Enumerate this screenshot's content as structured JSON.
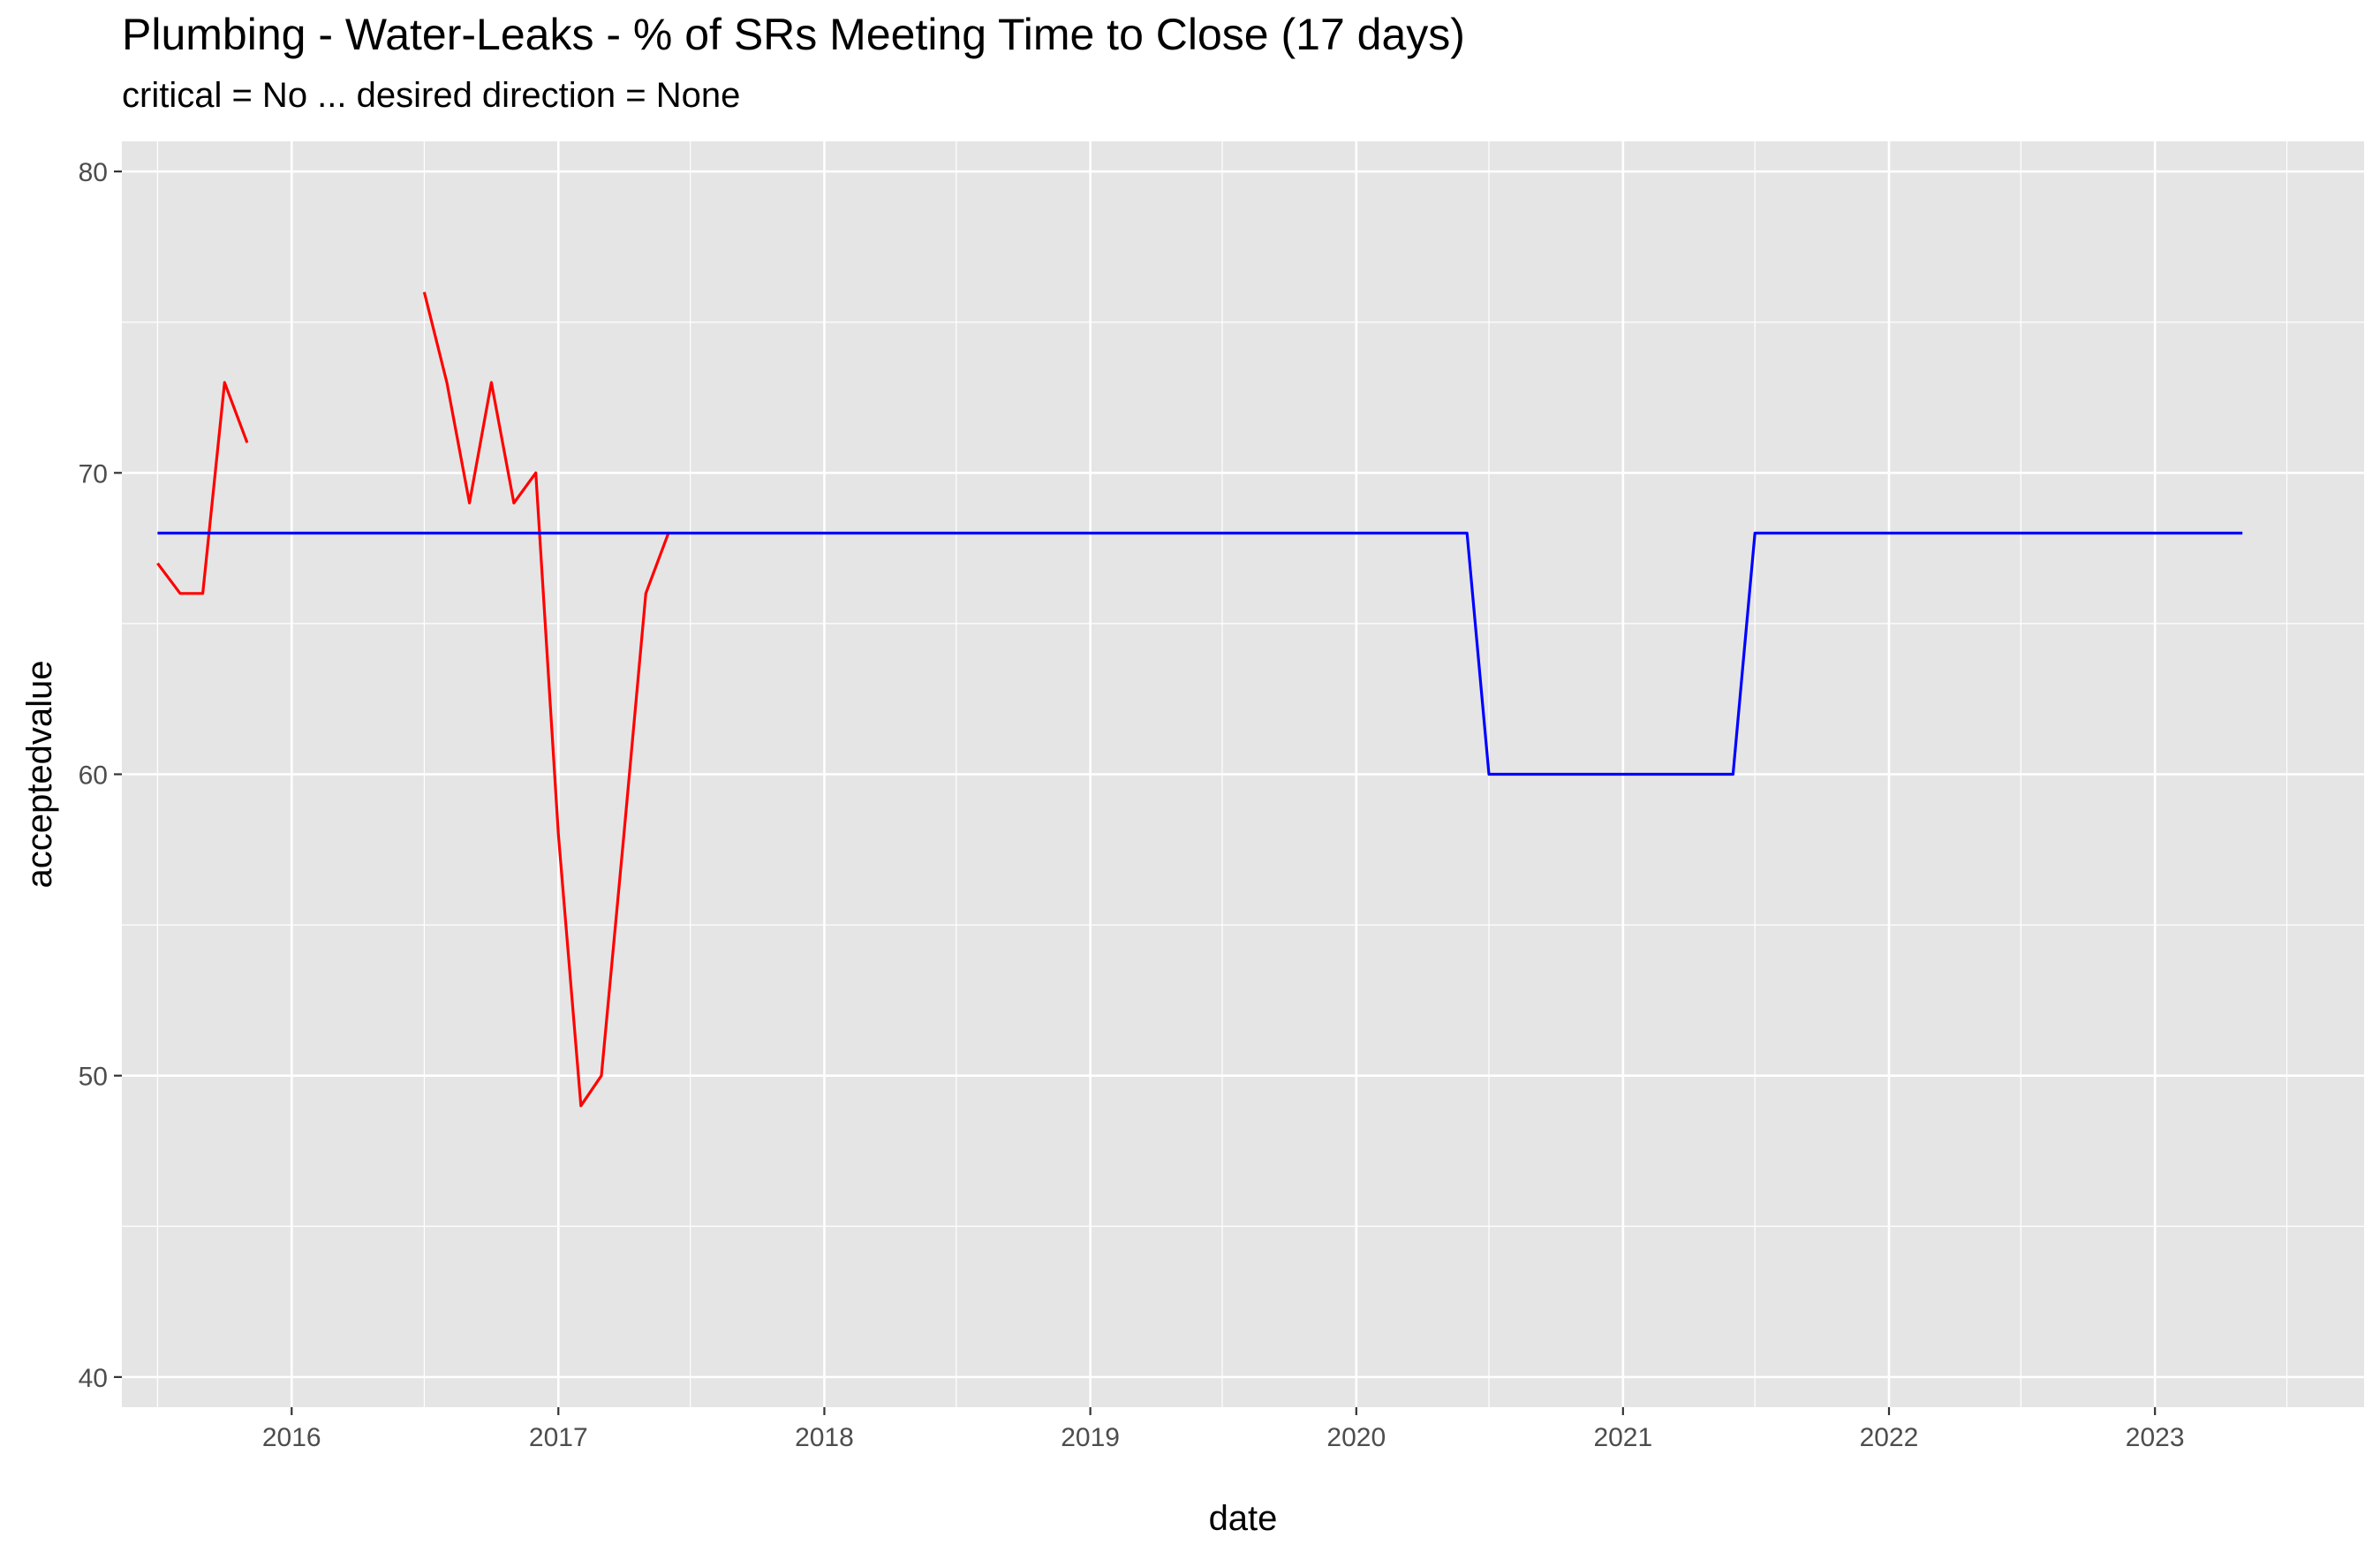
{
  "chart_data": {
    "type": "line",
    "title": "Plumbing - Water-Leaks - % of SRs Meeting Time to Close (17 days)",
    "subtitle": "critical = No ... desired direction = None",
    "xlabel": "date",
    "ylabel": "acceptedvalue",
    "xlim": [
      "2015-05-13",
      "2023-10-15"
    ],
    "ylim": [
      39,
      81
    ],
    "x_ticks": [
      {
        "date": "2016-01-01",
        "label": "2016"
      },
      {
        "date": "2017-01-01",
        "label": "2017"
      },
      {
        "date": "2018-01-01",
        "label": "2018"
      },
      {
        "date": "2019-01-01",
        "label": "2019"
      },
      {
        "date": "2020-01-01",
        "label": "2020"
      },
      {
        "date": "2021-01-01",
        "label": "2021"
      },
      {
        "date": "2022-01-01",
        "label": "2022"
      },
      {
        "date": "2023-01-01",
        "label": "2023"
      }
    ],
    "x_minor_ticks": [
      "2015-07-01",
      "2016-07-01",
      "2017-07-01",
      "2018-07-01",
      "2019-07-01",
      "2020-07-01",
      "2021-07-01",
      "2022-07-01",
      "2023-07-01"
    ],
    "y_ticks": [
      40,
      50,
      60,
      70,
      80
    ],
    "y_minor_ticks": [
      45,
      55,
      65,
      75
    ],
    "grid": true,
    "legend": "none",
    "series": [
      {
        "color": "#ff0000",
        "segments": [
          [
            {
              "x": "2015-07-01",
              "y": 67
            },
            {
              "x": "2015-08-01",
              "y": 66
            },
            {
              "x": "2015-09-01",
              "y": 66
            },
            {
              "x": "2015-10-01",
              "y": 73
            },
            {
              "x": "2015-11-01",
              "y": 71
            }
          ],
          [
            {
              "x": "2016-07-01",
              "y": 76
            },
            {
              "x": "2016-08-01",
              "y": 73
            },
            {
              "x": "2016-09-01",
              "y": 69
            },
            {
              "x": "2016-10-01",
              "y": 73
            },
            {
              "x": "2016-11-01",
              "y": 69
            },
            {
              "x": "2016-12-01",
              "y": 70
            },
            {
              "x": "2017-01-01",
              "y": 58
            },
            {
              "x": "2017-02-01",
              "y": 49
            },
            {
              "x": "2017-03-01",
              "y": 50
            },
            {
              "x": "2017-04-01",
              "y": 58
            },
            {
              "x": "2017-05-01",
              "y": 66
            },
            {
              "x": "2017-06-01",
              "y": 68
            }
          ]
        ]
      },
      {
        "color": "#0000ff",
        "segments": [
          [
            {
              "x": "2015-07-01",
              "y": 68
            },
            {
              "x": "2020-06-01",
              "y": 68
            },
            {
              "x": "2020-07-01",
              "y": 60
            },
            {
              "x": "2021-06-01",
              "y": 60
            },
            {
              "x": "2021-07-01",
              "y": 68
            },
            {
              "x": "2023-05-01",
              "y": 68
            }
          ]
        ]
      }
    ]
  }
}
